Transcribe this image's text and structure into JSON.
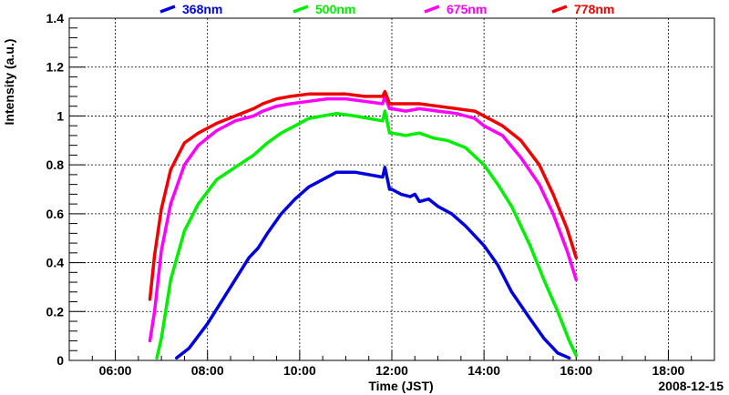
{
  "chart_data": {
    "type": "line",
    "title": "",
    "xlabel": "Time (JST)",
    "ylabel": "Intensity (a.u.)",
    "date_label": "2008-12-15",
    "xlim": [
      5.0,
      19.0
    ],
    "ylim": [
      0,
      1.4
    ],
    "grid": true,
    "legend_position": "top",
    "x_ticks": [
      {
        "value": 6,
        "label": "06:00"
      },
      {
        "value": 8,
        "label": "08:00"
      },
      {
        "value": 10,
        "label": "10:00"
      },
      {
        "value": 12,
        "label": "12:00"
      },
      {
        "value": 14,
        "label": "14:00"
      },
      {
        "value": 16,
        "label": "16:00"
      },
      {
        "value": 18,
        "label": "18:00"
      }
    ],
    "y_ticks": [
      {
        "value": 0,
        "label": "0"
      },
      {
        "value": 0.2,
        "label": "0.2"
      },
      {
        "value": 0.4,
        "label": "0.4"
      },
      {
        "value": 0.6,
        "label": "0.6"
      },
      {
        "value": 0.8,
        "label": "0.8"
      },
      {
        "value": 1.0,
        "label": "1"
      },
      {
        "value": 1.2,
        "label": "1.2"
      },
      {
        "value": 1.4,
        "label": "1.4"
      }
    ],
    "series": [
      {
        "name": "368nm",
        "color": "#0000dd",
        "x": [
          7.33,
          7.6,
          8.0,
          8.5,
          8.9,
          9.1,
          9.3,
          9.6,
          9.9,
          10.2,
          10.5,
          10.8,
          11.2,
          11.5,
          11.8,
          11.85,
          11.95,
          12.0,
          12.2,
          12.4,
          12.5,
          12.6,
          12.8,
          13.0,
          13.3,
          13.6,
          14.0,
          14.3,
          14.6,
          15.0,
          15.3,
          15.6,
          15.85
        ],
        "values": [
          0.01,
          0.05,
          0.15,
          0.3,
          0.42,
          0.46,
          0.52,
          0.6,
          0.66,
          0.71,
          0.74,
          0.77,
          0.77,
          0.76,
          0.75,
          0.79,
          0.7,
          0.7,
          0.68,
          0.67,
          0.68,
          0.65,
          0.66,
          0.63,
          0.6,
          0.55,
          0.47,
          0.39,
          0.28,
          0.17,
          0.09,
          0.03,
          0.01
        ]
      },
      {
        "name": "500nm",
        "color": "#00ee00",
        "x": [
          6.9,
          7.0,
          7.2,
          7.5,
          7.8,
          8.2,
          8.6,
          9.0,
          9.3,
          9.6,
          9.9,
          10.2,
          10.5,
          10.8,
          11.2,
          11.5,
          11.8,
          11.85,
          11.95,
          12.0,
          12.3,
          12.6,
          12.9,
          13.2,
          13.6,
          14.0,
          14.3,
          14.6,
          15.0,
          15.3,
          15.6,
          15.85,
          16.0
        ],
        "values": [
          0.01,
          0.09,
          0.33,
          0.53,
          0.64,
          0.74,
          0.79,
          0.84,
          0.89,
          0.93,
          0.96,
          0.99,
          1.0,
          1.01,
          1.0,
          0.99,
          0.98,
          1.02,
          0.93,
          0.93,
          0.92,
          0.93,
          0.91,
          0.9,
          0.87,
          0.8,
          0.72,
          0.63,
          0.47,
          0.33,
          0.2,
          0.08,
          0.02
        ]
      },
      {
        "name": "675nm",
        "color": "#ff00ff",
        "x": [
          6.75,
          6.85,
          7.0,
          7.2,
          7.5,
          7.8,
          8.2,
          8.6,
          9.0,
          9.2,
          9.5,
          9.8,
          10.2,
          10.6,
          11.0,
          11.4,
          11.8,
          11.85,
          11.95,
          12.0,
          12.3,
          12.6,
          13.0,
          13.4,
          13.8,
          14.0,
          14.4,
          14.8,
          15.2,
          15.5,
          15.8,
          16.0
        ],
        "values": [
          0.08,
          0.2,
          0.45,
          0.64,
          0.8,
          0.88,
          0.94,
          0.98,
          1.0,
          1.02,
          1.04,
          1.05,
          1.06,
          1.07,
          1.07,
          1.06,
          1.05,
          1.08,
          1.03,
          1.03,
          1.02,
          1.03,
          1.02,
          1.01,
          0.99,
          0.96,
          0.92,
          0.83,
          0.72,
          0.6,
          0.45,
          0.33
        ]
      },
      {
        "name": "778nm",
        "color": "#ee0000",
        "x": [
          6.75,
          6.85,
          7.0,
          7.2,
          7.5,
          7.8,
          8.2,
          8.6,
          9.0,
          9.2,
          9.5,
          9.8,
          10.2,
          10.6,
          11.0,
          11.4,
          11.8,
          11.85,
          11.95,
          12.0,
          12.3,
          12.6,
          13.0,
          13.4,
          13.8,
          14.0,
          14.4,
          14.8,
          15.2,
          15.5,
          15.8,
          16.0
        ],
        "values": [
          0.25,
          0.43,
          0.62,
          0.78,
          0.89,
          0.93,
          0.97,
          1.0,
          1.03,
          1.05,
          1.07,
          1.08,
          1.09,
          1.09,
          1.09,
          1.08,
          1.08,
          1.1,
          1.05,
          1.05,
          1.05,
          1.05,
          1.04,
          1.03,
          1.02,
          1.0,
          0.96,
          0.9,
          0.8,
          0.68,
          0.54,
          0.42
        ]
      }
    ]
  }
}
